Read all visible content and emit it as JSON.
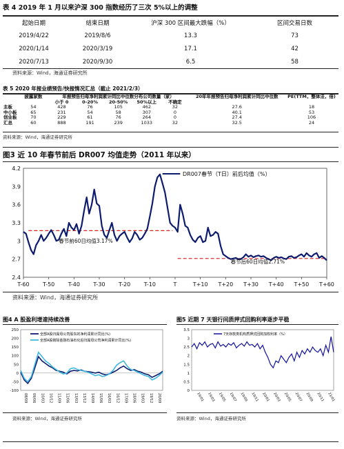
{
  "table4": {
    "title": "表 4 2019 年 1 月以来沪深 300 指数经历了三次 5%以上的调整",
    "headers": [
      "起始日期",
      "结束日期",
      "沪深 300 区间最大跌幅（%）",
      "区间交易日数"
    ],
    "rows": [
      [
        "2019/4/22",
        "2019/8/6",
        "13.3",
        "73"
      ],
      [
        "2020/1/14",
        "2020/3/19",
        "17.1",
        "42"
      ],
      [
        "2020/7/13",
        "2020/9/30",
        "6.5",
        "58"
      ]
    ],
    "source": "资料来源：Wind，海通证券研究所"
  },
  "table5": {
    "title": "表 5 2020 年报业绩预告/快报情况汇总（截止 2021/2/3）",
    "headers_top": [
      "披露家数",
      "年报预告归母净利润累计同比中位数分布公司数量（家）",
      "20年年报预告归母净利润累计同比中位数",
      "PE(TTM，整体法，倍)"
    ],
    "headers_sub": [
      "小于 0",
      "0-20%",
      "20-50%",
      "50%以上",
      "不确定"
    ],
    "rows": [
      [
        "主板",
        "54",
        "428",
        "76",
        "105",
        "462",
        "32",
        "27.6",
        "18"
      ],
      [
        "中小板",
        "65",
        "231",
        "54",
        "58",
        "307",
        "0",
        "40.1",
        "53"
      ],
      [
        "创业板",
        "70",
        "229",
        "61",
        "76",
        "264",
        "0",
        "27.4",
        "106"
      ],
      [
        "汇总",
        "60",
        "888",
        "191",
        "239",
        "1033",
        "32",
        "32.5",
        "24"
      ]
    ],
    "source": "资料来源：Wind，海通证券研究所"
  },
  "figure3": {
    "title": "图3  近 10 年春节前后 DR007 均值走势（2011 年以来）",
    "source": "资料来源：Wind，海通证券研究所",
    "chart_data": {
      "type": "line",
      "legend": "DR007春节（T日）前后均值（%）",
      "x_ticks": [
        "T-60",
        "T-50",
        "T-40",
        "T-30",
        "T-20",
        "T-10",
        "T",
        "T+10",
        "T+20",
        "T+30",
        "T+40",
        "T+50",
        "T+60"
      ],
      "y_ticks": [
        "2.4",
        "2.7",
        "3",
        "3.3",
        "3.6",
        "3.9",
        "4.2"
      ],
      "ylim": [
        2.4,
        4.2
      ],
      "xlim": [
        -60,
        60
      ],
      "annotations": [
        "春节前60日均值3.17%",
        "春节后60日均值2.71%"
      ],
      "pre_avg": 3.17,
      "post_avg": 2.71,
      "series": [
        {
          "name": "DR007春节（T日）前后均值（%）",
          "x": [
            -60,
            -59,
            -58,
            -57,
            -56,
            -55,
            -54,
            -53,
            -52,
            -51,
            -50,
            -49,
            -48,
            -47,
            -46,
            -45,
            -44,
            -43,
            -42,
            -41,
            -40,
            -39,
            -38,
            -37,
            -36,
            -35,
            -34,
            -33,
            -32,
            -31,
            -30,
            -29,
            -28,
            -27,
            -26,
            -25,
            -24,
            -23,
            -22,
            -21,
            -20,
            -19,
            -18,
            -17,
            -16,
            -15,
            -14,
            -13,
            -12,
            -11,
            -10,
            -9,
            -8,
            -7,
            -6,
            -5,
            -4,
            -3,
            -2,
            -1,
            0,
            1,
            2,
            3,
            4,
            5,
            6,
            7,
            8,
            9,
            10,
            11,
            12,
            13,
            14,
            15,
            16,
            17,
            18,
            19,
            20,
            21,
            22,
            23,
            24,
            25,
            26,
            27,
            28,
            29,
            30,
            31,
            32,
            33,
            34,
            35,
            36,
            37,
            38,
            39,
            40,
            41,
            42,
            43,
            44,
            45,
            46,
            47,
            48,
            49,
            50,
            51,
            52,
            53,
            54,
            55,
            56,
            57,
            58,
            59,
            60
          ],
          "y": [
            3.15,
            3.12,
            2.98,
            2.85,
            2.78,
            2.93,
            3.0,
            3.1,
            3.0,
            3.05,
            3.12,
            3.18,
            3.1,
            3.0,
            3.02,
            3.12,
            3.2,
            3.08,
            3.3,
            3.22,
            3.18,
            3.28,
            3.12,
            3.25,
            3.5,
            3.72,
            3.45,
            3.6,
            3.85,
            3.62,
            3.58,
            3.25,
            3.1,
            3.05,
            3.18,
            3.3,
            3.1,
            3.0,
            3.08,
            3.12,
            3.15,
            3.06,
            2.98,
            3.04,
            3.15,
            3.1,
            3.02,
            3.05,
            3.12,
            3.2,
            3.4,
            3.62,
            3.9,
            4.05,
            4.1,
            3.95,
            3.8,
            3.55,
            3.3,
            3.25,
            3.22,
            3.15,
            3.6,
            3.45,
            3.25,
            3.22,
            3.1,
            3.02,
            2.98,
            3.05,
            3.08,
            2.98,
            3.0,
            3.22,
            3.08,
            3.1,
            3.15,
            3.12,
            2.92,
            2.78,
            2.75,
            2.72,
            2.7,
            2.71,
            2.72,
            2.7,
            2.7,
            2.73,
            2.78,
            2.74,
            2.76,
            2.73,
            2.75,
            2.76,
            2.74,
            2.75,
            2.72,
            2.7,
            2.68,
            2.72,
            2.74,
            2.72,
            2.73,
            2.71,
            2.7,
            2.74,
            2.75,
            2.72,
            2.73,
            2.76,
            2.78,
            2.74,
            2.8,
            2.76,
            2.74,
            2.78,
            2.8,
            2.72,
            2.75,
            2.72,
            2.68
          ]
        }
      ]
    }
  },
  "figure4": {
    "title": "图4  A 股盈利增速持续改善",
    "source": "资料来源：Wind，海通证券研究所",
    "chart_data": {
      "type": "line",
      "y_ticks": [
        "250",
        "200",
        "150",
        "100",
        "50",
        "0",
        "-50",
        "-100"
      ],
      "ylim": [
        -100,
        250
      ],
      "x_ticks": [
        "08/09",
        "09/06",
        "10/03",
        "10/12",
        "11/09",
        "12/06",
        "13/03",
        "13/12",
        "14/09",
        "15/06",
        "16/03",
        "16/12",
        "17/09",
        "18/06",
        "19/03",
        "19/12",
        "20/09"
      ],
      "series": [
        {
          "name": "全部A股归属母公司股东的净利润累计同比(%)",
          "values": [
            5,
            -40,
            -60,
            -30,
            30,
            95,
            70,
            55,
            40,
            30,
            15,
            10,
            5,
            -5,
            10,
            15,
            12,
            18,
            10,
            8,
            5,
            0,
            5,
            -5,
            -10,
            -5,
            5,
            15,
            30,
            40,
            25,
            15,
            20,
            10,
            5,
            -5,
            -10,
            -25,
            -15,
            -5,
            10
          ]
        },
        {
          "name": "全部A股剔除金融石油石化后归属母公司净利润累计同比(%)",
          "values": [
            15,
            -30,
            -50,
            -20,
            50,
            120,
            95,
            70,
            55,
            35,
            20,
            5,
            -5,
            0,
            25,
            30,
            20,
            15,
            10,
            5,
            -5,
            -15,
            -10,
            -20,
            -15,
            -5,
            15,
            45,
            60,
            70,
            40,
            20,
            15,
            5,
            -5,
            -15,
            -20,
            -40,
            -30,
            -15,
            5
          ]
        }
      ]
    }
  },
  "figure5": {
    "title": "图5  近期 7 天银行间质押式回购利率逐步平稳",
    "source": "资料来源：Wind，海通证券研究所",
    "chart_data": {
      "type": "line",
      "legend": "7天存款类机构质押式回购加权利率（%）",
      "y_ticks": [
        "3.5",
        "3",
        "2.5",
        "2",
        "1.5",
        "1",
        "0.5",
        "0"
      ],
      "ylim": [
        0,
        3.5
      ],
      "x_ticks": [
        "19/01",
        "19/03",
        "19/05",
        "19/07",
        "19/09",
        "19/11",
        "20/01",
        "20/03",
        "20/05",
        "20/07",
        "20/09",
        "20/11",
        "21/01"
      ],
      "series": [
        {
          "name": "7天存款类机构质押式回购加权利率（%）",
          "values": [
            2.5,
            2.7,
            2.4,
            2.75,
            2.6,
            2.8,
            2.5,
            2.65,
            2.7,
            2.45,
            2.8,
            2.55,
            2.65,
            2.5,
            2.7,
            2.6,
            2.75,
            2.45,
            2.6,
            2.7,
            2.55,
            2.8,
            2.6,
            2.65,
            2.5,
            2.7,
            2.4,
            2.6,
            2.2,
            1.9,
            1.5,
            1.3,
            1.7,
            1.6,
            2.0,
            1.8,
            1.6,
            1.9,
            2.1,
            1.7,
            2.2,
            1.9,
            2.3,
            2.1,
            2.4,
            2.2,
            2.5,
            2.3,
            2.2,
            2.4,
            2.0,
            2.6,
            2.2,
            3.1,
            2.2
          ]
        }
      ]
    }
  },
  "colors": {
    "ink": "#111111",
    "navy": "#0d1b6e",
    "cyan": "#3fb7e0",
    "red": "#d42020",
    "blue": "#1010a0"
  }
}
